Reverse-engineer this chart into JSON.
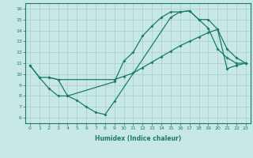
{
  "xlabel": "Humidex (Indice chaleur)",
  "xlim": [
    -0.5,
    23.5
  ],
  "ylim": [
    5.5,
    16.5
  ],
  "xticks": [
    0,
    1,
    2,
    3,
    4,
    5,
    6,
    7,
    8,
    9,
    10,
    11,
    12,
    13,
    14,
    15,
    16,
    17,
    18,
    19,
    20,
    21,
    22,
    23
  ],
  "yticks": [
    6,
    7,
    8,
    9,
    10,
    11,
    12,
    13,
    14,
    15,
    16
  ],
  "line_color": "#1a7a6e",
  "bg_color": "#c8e8e5",
  "grid_color": "#a8ccc9",
  "line1_x": [
    0,
    1,
    2,
    3,
    4,
    9,
    10,
    11,
    12,
    13,
    14,
    15,
    16,
    17,
    18,
    19,
    20,
    21,
    22,
    23
  ],
  "line1_y": [
    10.8,
    9.7,
    8.7,
    8.0,
    8.0,
    9.3,
    11.2,
    12.0,
    13.5,
    14.4,
    15.2,
    15.7,
    15.7,
    15.8,
    15.0,
    14.2,
    12.3,
    11.5,
    11.0,
    11.0
  ],
  "line2_x": [
    2,
    3,
    4,
    5,
    6,
    7,
    8,
    9,
    15,
    16,
    17,
    18,
    19,
    20,
    21,
    22,
    23
  ],
  "line2_y": [
    9.7,
    9.5,
    8.0,
    7.6,
    7.0,
    6.5,
    6.3,
    7.5,
    15.2,
    15.7,
    15.8,
    15.0,
    15.0,
    14.1,
    12.3,
    11.5,
    11.0
  ],
  "line3_x": [
    0,
    1,
    2,
    3,
    9,
    10,
    11,
    12,
    13,
    14,
    15,
    16,
    17,
    18,
    19,
    20,
    21,
    22,
    23
  ],
  "line3_y": [
    10.8,
    9.7,
    9.7,
    9.5,
    9.5,
    9.8,
    10.1,
    10.6,
    11.1,
    11.6,
    12.1,
    12.6,
    13.0,
    13.4,
    13.8,
    14.1,
    10.5,
    10.8,
    11.0
  ]
}
